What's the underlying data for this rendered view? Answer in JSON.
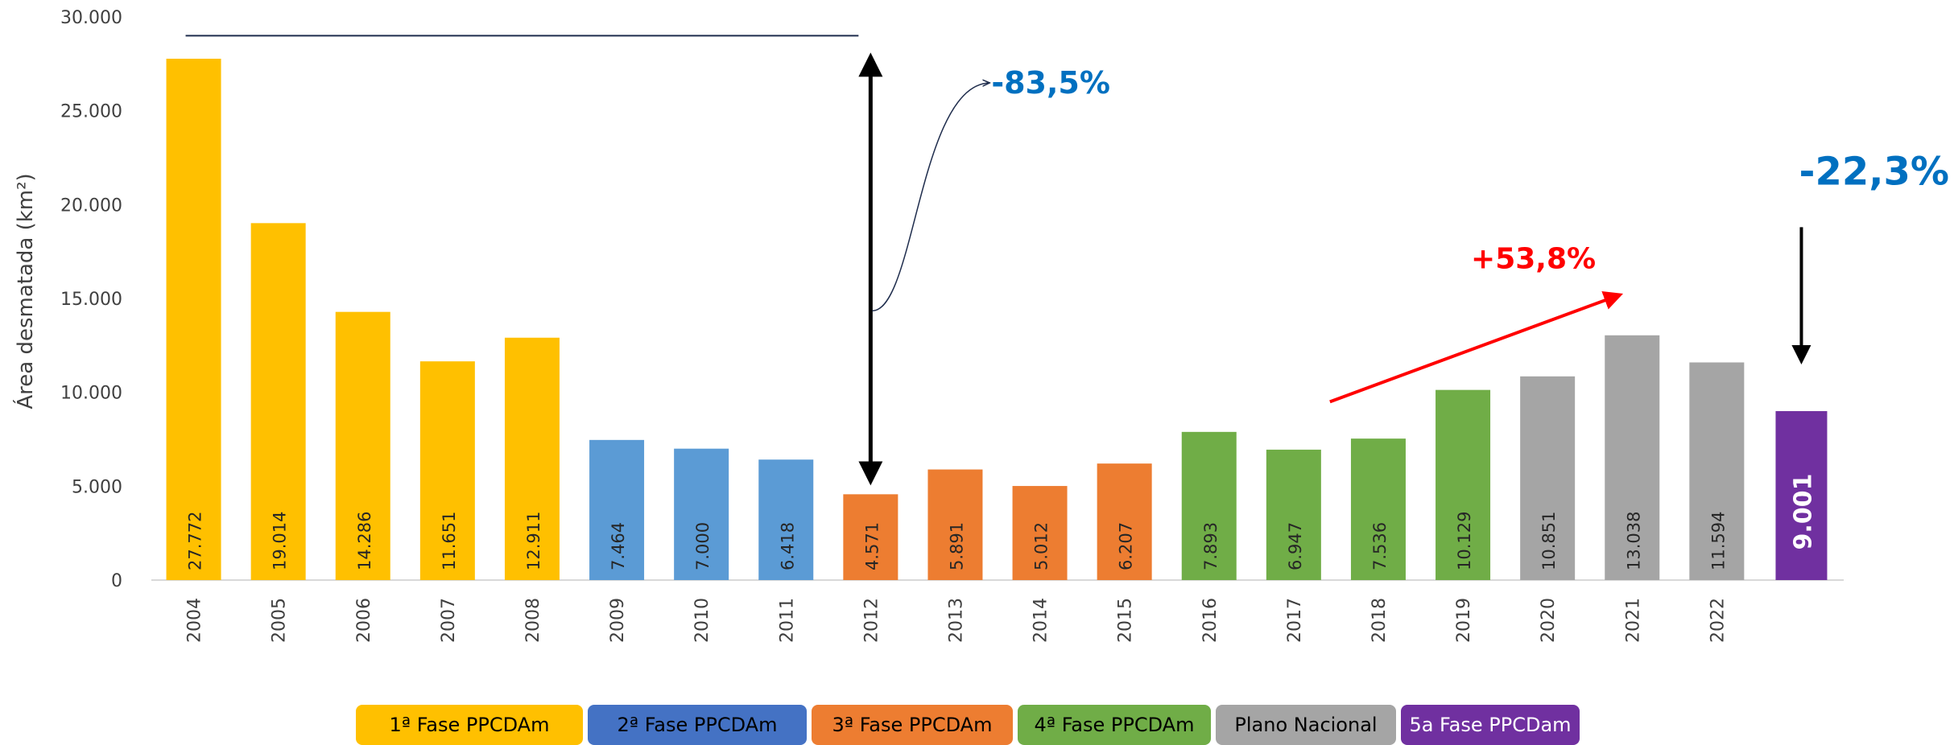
{
  "chart_data": {
    "type": "bar",
    "ylabel": "Área desmatada (km²)",
    "ylim": [
      0,
      30000
    ],
    "yticks": [
      0,
      5000,
      10000,
      15000,
      20000,
      25000,
      30000
    ],
    "ytick_labels": [
      "0",
      "5.000",
      "10.000",
      "15.000",
      "20.000",
      "25.000",
      "30.000"
    ],
    "grid": false,
    "categories": [
      "2004",
      "2005",
      "2006",
      "2007",
      "2008",
      "2009",
      "2010",
      "2011",
      "2012",
      "2013",
      "2014",
      "2015",
      "2016",
      "2017",
      "2018",
      "2019",
      "2020",
      "2021",
      "2022"
    ],
    "values": [
      27772,
      19014,
      14286,
      11651,
      12911,
      7464,
      7000,
      6418,
      4571,
      5891,
      5012,
      6207,
      7893,
      6947,
      7536,
      10129,
      10851,
      13038,
      11594
    ],
    "value_labels": [
      "27.772",
      "19.014",
      "14.286",
      "11.651",
      "12.911",
      "7.464",
      "7.000",
      "6.418",
      "4.571",
      "5.891",
      "5.012",
      "6.207",
      "7.893",
      "6.947",
      "7.536",
      "10.129",
      "10.851",
      "13.038",
      "11.594"
    ],
    "phases": [
      0,
      0,
      0,
      0,
      0,
      1,
      1,
      1,
      2,
      2,
      2,
      2,
      3,
      3,
      3,
      3,
      4,
      4,
      4
    ],
    "extra_bar": {
      "value": 9001,
      "label": "9.001",
      "phase": 5
    },
    "annotations": {
      "drop_2004_2012": "-83,5%",
      "rise_2018_2021": "+53,8%",
      "drop_2022_2023": "-22,3%"
    },
    "annotation_colors": {
      "blue": "#0070C0",
      "red": "#FF0000",
      "black": "#000000"
    },
    "reference_line_value": 29000,
    "legend": [
      {
        "label": "1ª Fase PPCDAm",
        "color": "#FFC000",
        "text_color": "#000000"
      },
      {
        "label": "2ª Fase PPCDAm",
        "color": "#4472C4",
        "text_color": "#000000"
      },
      {
        "label": "3ª Fase PPCDAm",
        "color": "#ED7D31",
        "text_color": "#000000"
      },
      {
        "label": "4ª Fase PPCDAm",
        "color": "#70AD47",
        "text_color": "#000000"
      },
      {
        "label": "Plano Nacional",
        "color": "#A5A5A5",
        "text_color": "#000000"
      },
      {
        "label": "5a Fase PPCDam",
        "color": "#7030A0",
        "text_color": "#ffffff"
      }
    ],
    "bar_colors": [
      "#FFC000",
      "#5B9BD5",
      "#ED7D31",
      "#70AD47",
      "#A5A5A5",
      "#7030A0"
    ],
    "legend_placement": "bottom"
  }
}
